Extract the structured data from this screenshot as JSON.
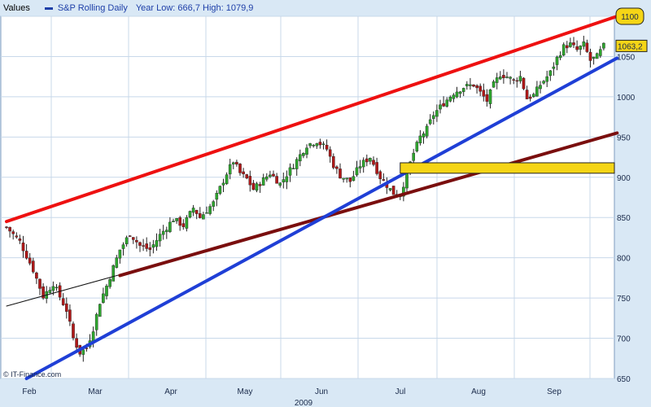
{
  "header": {
    "values_label": "Values",
    "series_name": "S&P Rolling Daily",
    "stats": "Year Low: 666,7  High: 1079,9"
  },
  "watermark": "© IT-Finance.com",
  "colors": {
    "background": "#ffffff",
    "grid": "#c8d8ea",
    "up_candle": "#2ea62e",
    "down_candle": "#b01818",
    "resistance_line": "#ee1111",
    "support_line": "#1f3fd6",
    "trend_line": "#7a0e0e",
    "zone": "#f5d516",
    "badge": "#f5d516"
  },
  "chart_data": {
    "type": "candlestick",
    "ylim": [
      650,
      1100
    ],
    "y_ticks": [
      650,
      700,
      750,
      800,
      850,
      900,
      950,
      1000,
      1050,
      1100
    ],
    "x_month_labels": [
      "Feb",
      "Mar",
      "Apr",
      "May",
      "Jun",
      "Jul",
      "Aug",
      "Sep"
    ],
    "year_label": "2009",
    "last_price": "1063,2",
    "top_badge": "1100",
    "n_candles": 153,
    "anchors": [
      [
        0,
        838
      ],
      [
        4,
        820
      ],
      [
        8,
        785
      ],
      [
        11,
        752
      ],
      [
        14,
        768
      ],
      [
        18,
        735
      ],
      [
        20,
        700
      ],
      [
        22,
        682
      ],
      [
        24,
        688
      ],
      [
        26,
        712
      ],
      [
        28,
        745
      ],
      [
        30,
        765
      ],
      [
        32,
        788
      ],
      [
        34,
        810
      ],
      [
        37,
        830
      ],
      [
        40,
        815
      ],
      [
        43,
        810
      ],
      [
        46,
        828
      ],
      [
        50,
        848
      ],
      [
        53,
        840
      ],
      [
        56,
        862
      ],
      [
        58,
        850
      ],
      [
        62,
        868
      ],
      [
        66,
        905
      ],
      [
        68,
        920
      ],
      [
        70,
        905
      ],
      [
        72,
        898
      ],
      [
        74,
        885
      ],
      [
        76,
        893
      ],
      [
        79,
        905
      ],
      [
        82,
        892
      ],
      [
        86,
        915
      ],
      [
        90,
        940
      ],
      [
        93,
        945
      ],
      [
        96,
        935
      ],
      [
        98,
        915
      ],
      [
        100,
        902
      ],
      [
        103,
        895
      ],
      [
        106,
        915
      ],
      [
        109,
        925
      ],
      [
        112,
        900
      ],
      [
        114,
        890
      ],
      [
        116,
        880
      ],
      [
        118,
        878
      ],
      [
        120,
        905
      ],
      [
        122,
        930
      ],
      [
        124,
        950
      ],
      [
        126,
        960
      ],
      [
        128,
        978
      ],
      [
        131,
        992
      ],
      [
        134,
        1005
      ],
      [
        137,
        1012
      ],
      [
        140,
        1015
      ],
      [
        142,
        1005
      ],
      [
        144,
        995
      ],
      [
        146,
        1015
      ],
      [
        148,
        1028
      ],
      [
        150,
        1025
      ],
      [
        152,
        1020
      ],
      [
        154,
        1025
      ],
      [
        156,
        998
      ],
      [
        158,
        1002
      ],
      [
        160,
        1015
      ],
      [
        163,
        1030
      ],
      [
        165,
        1048
      ],
      [
        167,
        1062
      ],
      [
        169,
        1065
      ],
      [
        171,
        1058
      ],
      [
        173,
        1065
      ],
      [
        175,
        1045
      ],
      [
        177,
        1050
      ],
      [
        179,
        1063
      ]
    ],
    "overlays": {
      "resistance_line": {
        "p1": [
          0,
          845
        ],
        "p2": [
          183,
          1100
        ]
      },
      "support_line": {
        "p1": [
          6,
          650
        ],
        "p2": [
          183,
          1048
        ]
      },
      "trend_line": {
        "p1": [
          34,
          778
        ],
        "p2": [
          183,
          955
        ]
      },
      "thin_trend_line": {
        "p1": [
          0,
          740
        ],
        "p2": [
          34,
          779
        ]
      },
      "zone": {
        "x_start": 118,
        "y_low": 905,
        "y_high": 918
      }
    }
  }
}
